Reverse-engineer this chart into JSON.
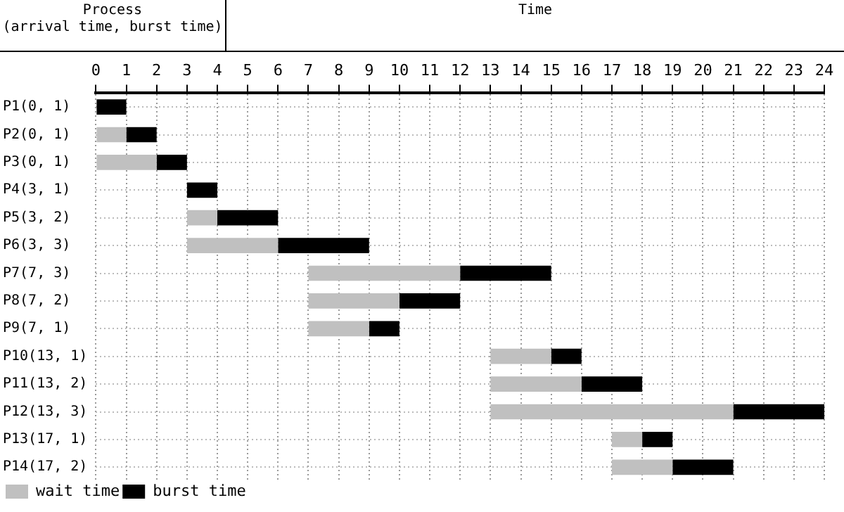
{
  "chart_data": {
    "type": "bar",
    "orientation": "horizontal",
    "xlabel": "Time",
    "ylabel": "Process\n(arrival time, burst time)",
    "categories": [
      "P1(0, 1)",
      "P2(0, 1)",
      "P3(0, 1)",
      "P4(3, 1)",
      "P5(3, 2)",
      "P6(3, 3)",
      "P7(7, 3)",
      "P8(7, 2)",
      "P9(7, 1)",
      "P10(13, 1)",
      "P11(13, 2)",
      "P12(13, 3)",
      "P13(17, 1)",
      "P14(17, 2)"
    ],
    "series": [
      {
        "name": "wait time",
        "color": "#c0c0c0",
        "base": [
          null,
          0,
          0,
          null,
          3,
          3,
          7,
          7,
          7,
          13,
          13,
          13,
          17,
          17
        ],
        "values": [
          null,
          1,
          2,
          null,
          1,
          3,
          5,
          3,
          2,
          2,
          3,
          8,
          1,
          2
        ]
      },
      {
        "name": "burst time",
        "color": "#000000",
        "base": [
          0,
          1,
          2,
          3,
          4,
          6,
          12,
          10,
          9,
          15,
          16,
          21,
          18,
          19
        ],
        "values": [
          1,
          1,
          1,
          1,
          2,
          3,
          3,
          2,
          1,
          1,
          2,
          3,
          1,
          2
        ]
      }
    ],
    "xlim": [
      0,
      24
    ],
    "xticks": [
      0,
      1,
      2,
      3,
      4,
      5,
      6,
      7,
      8,
      9,
      10,
      11,
      12,
      13,
      14,
      15,
      16,
      17,
      18,
      19,
      20,
      21,
      22,
      23,
      24
    ],
    "grid": true,
    "legend": "bottom left"
  }
}
